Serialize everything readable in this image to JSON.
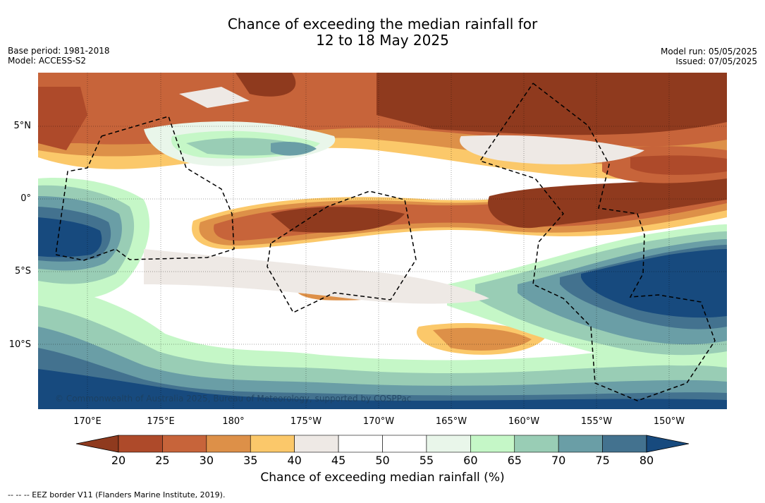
{
  "title": {
    "line1": "Chance of exceeding the median rainfall for",
    "line2": "12 to 18 May 2025"
  },
  "meta_left": {
    "base_period": "Base period: 1981-2018",
    "model": "Model: ACCESS-S2"
  },
  "meta_right": {
    "model_run": "Model run: 05/05/2025",
    "issued": "Issued: 07/05/2025"
  },
  "map": {
    "copyright": "© Commonwealth of Australia 2025, Bureau of Meteorology, supported by COSPPac",
    "lon_labels": [
      "170°E",
      "175°E",
      "180°",
      "175°W",
      "170°W",
      "165°W",
      "160°W",
      "155°W",
      "150°W"
    ],
    "lat_labels": [
      "5°N",
      "0°",
      "5°S",
      "10°S"
    ]
  },
  "colorbar": {
    "ticks": [
      "20",
      "25",
      "30",
      "35",
      "40",
      "45",
      "50",
      "55",
      "60",
      "65",
      "70",
      "75",
      "80"
    ],
    "colors": [
      "#8f3a1e",
      "#ae4a2a",
      "#c7643a",
      "#dd9048",
      "#fbc86a",
      "#eee9e5",
      "#ffffff",
      "#ffffff",
      "#e9f6ea",
      "#c5f7c7",
      "#99cdb5",
      "#6a9ea6",
      "#43728f",
      "#174a7e"
    ],
    "label": "Chance of exceeding median rainfall (%)"
  },
  "footnote": "--  --  -- EEZ border V11 (Flanders Marine Institute, 2019)."
}
